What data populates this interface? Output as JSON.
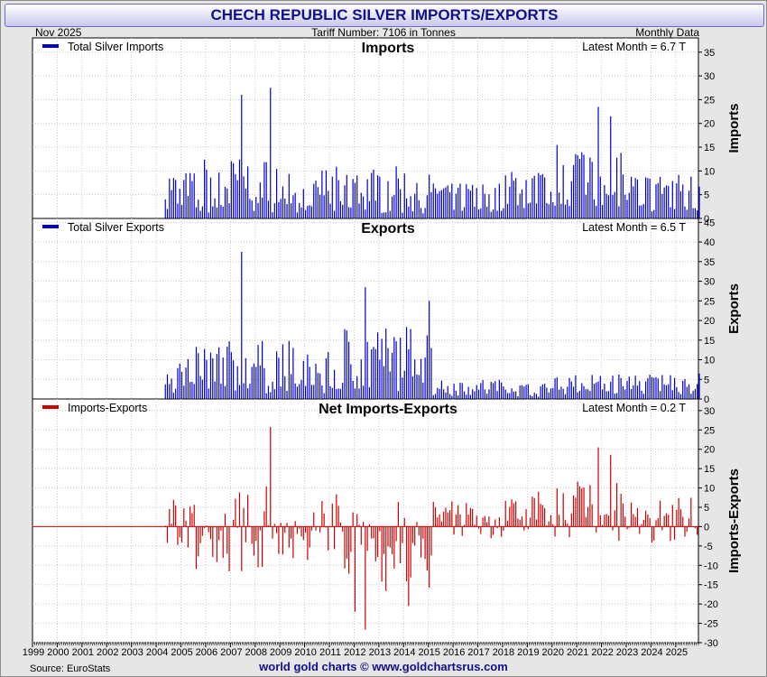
{
  "header": {
    "title": "CHECH REPUBLIC SILVER IMPORTS/EXPORTS",
    "date": "Nov  2025",
    "tariff": "Tariff Number: 7106 in Tonnes",
    "frequency": "Monthly Data"
  },
  "footer": {
    "source": "Source: EuroStats",
    "credit": "world gold charts © www.goldchartsrus.com"
  },
  "colors": {
    "imports": "#0000cc",
    "exports": "#0000cc",
    "net": "#cc0000"
  },
  "chart_data": [
    {
      "type": "bar",
      "title": "Imports",
      "legend": "Total Silver Imports",
      "latest": "Latest Month = 6.7 T",
      "ylabel": "Imports",
      "ylim": [
        0,
        38
      ],
      "yticks": [
        0,
        5,
        10,
        15,
        20,
        25,
        30,
        35
      ],
      "start": "2004-05",
      "peaks": [
        {
          "month": "2007-06",
          "value": 26
        },
        {
          "month": "2008-08",
          "value": 27.5
        },
        {
          "month": "2021-11",
          "value": 23.5
        },
        {
          "month": "2022-05",
          "value": 21.5
        }
      ],
      "latest_value": 6.7
    },
    {
      "type": "bar",
      "title": "Exports",
      "legend": "Total Silver Exports",
      "latest": "Latest Month = 6.5 T",
      "ylabel": "Exports",
      "ylim": [
        0,
        46
      ],
      "yticks": [
        0,
        5,
        10,
        15,
        20,
        25,
        30,
        35,
        40,
        45
      ],
      "start": "2004-05",
      "peaks": [
        {
          "month": "2007-06",
          "value": 37.5
        },
        {
          "month": "2012-06",
          "value": 28.5
        },
        {
          "month": "2015-01",
          "value": 25
        }
      ],
      "latest_value": 6.5
    },
    {
      "type": "bar",
      "title": "Net Imports-Exports",
      "legend": "Imports-Exports",
      "latest": "Latest Month = 0.2 T",
      "ylabel": "Imports-Exports",
      "ylim": [
        -30,
        33
      ],
      "yticks": [
        -30,
        -25,
        -20,
        -15,
        -10,
        -5,
        0,
        5,
        10,
        15,
        20,
        25,
        30
      ],
      "start": "2004-05",
      "peaks": [
        {
          "month": "2012-01",
          "value": -22
        },
        {
          "month": "2014-03",
          "value": -20.5
        },
        {
          "month": "2021-11",
          "value": 20.5
        },
        {
          "month": "2022-05",
          "value": 18.5
        }
      ],
      "latest_value": 0.2
    }
  ],
  "x_axis": {
    "years": [
      "1999",
      "2000",
      "2001",
      "2002",
      "2003",
      "2004",
      "2005",
      "2006",
      "2007",
      "2008",
      "2009",
      "2010",
      "2011",
      "2012",
      "2013",
      "2014",
      "2015",
      "2016",
      "2017",
      "2018",
      "2019",
      "2020",
      "2021",
      "2022",
      "2023",
      "2024",
      "2025"
    ],
    "range": [
      1999,
      2025.917
    ]
  }
}
